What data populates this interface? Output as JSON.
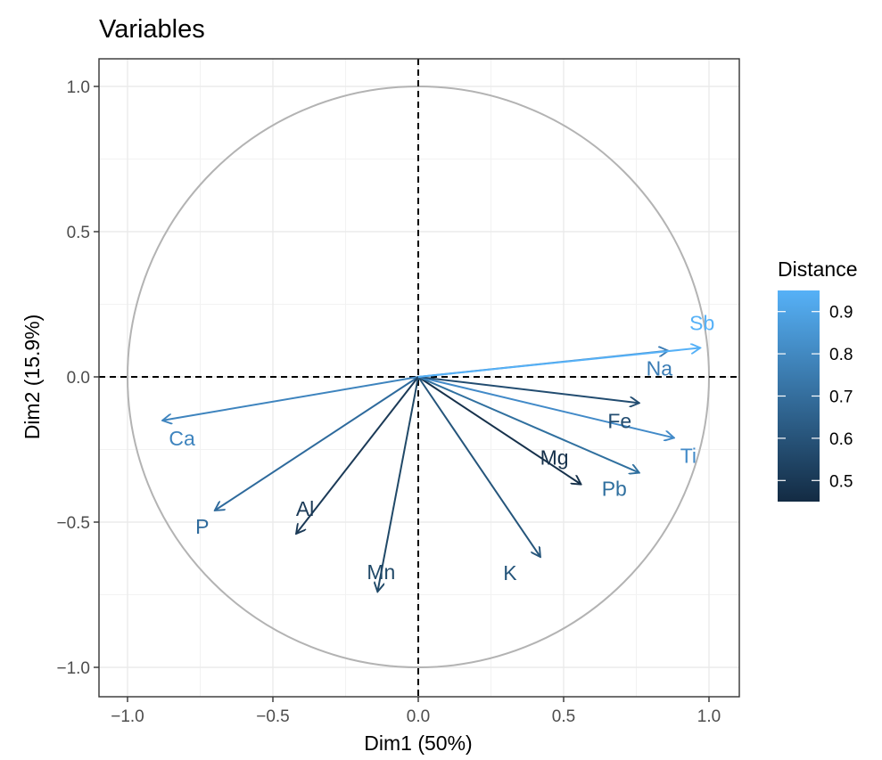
{
  "chart_data": {
    "type": "scatter",
    "title": "Variables",
    "xlabel": "Dim1 (50%)",
    "ylabel": "Dim2 (15.9%)",
    "xlim": [
      -1.1,
      1.1
    ],
    "ylim": [
      -1.1,
      1.1
    ],
    "x_ticks": [
      -1.0,
      -0.5,
      0.0,
      0.5,
      1.0
    ],
    "x_tick_labels": [
      "−1.0",
      "−0.5",
      "0.0",
      "0.5",
      "1.0"
    ],
    "y_ticks": [
      -1.0,
      -0.5,
      0.0,
      0.5,
      1.0
    ],
    "y_tick_labels": [
      "−1.0",
      "−0.5",
      "0.0",
      "0.5",
      "1.0"
    ],
    "grid": true,
    "unit_circle": true,
    "reference_lines": [
      {
        "axis": "x",
        "value": 0,
        "style": "dashed"
      },
      {
        "axis": "y",
        "value": 0,
        "style": "dashed"
      }
    ],
    "variables": [
      {
        "name": "Ca",
        "x": -0.88,
        "y": -0.15,
        "distance": 0.79,
        "color": "#3e84be"
      },
      {
        "name": "P",
        "x": -0.7,
        "y": -0.46,
        "distance": 0.68,
        "color": "#2e6a9c"
      },
      {
        "name": "Al",
        "x": -0.42,
        "y": -0.54,
        "distance": 0.5,
        "color": "#1b3a57"
      },
      {
        "name": "Mn",
        "x": -0.14,
        "y": -0.74,
        "distance": 0.57,
        "color": "#204968"
      },
      {
        "name": "K",
        "x": 0.42,
        "y": -0.62,
        "distance": 0.62,
        "color": "#25557b"
      },
      {
        "name": "Mg",
        "x": 0.56,
        "y": -0.37,
        "distance": 0.46,
        "color": "#16314b"
      },
      {
        "name": "Pb",
        "x": 0.76,
        "y": -0.33,
        "distance": 0.7,
        "color": "#30709f"
      },
      {
        "name": "Ti",
        "x": 0.88,
        "y": -0.21,
        "distance": 0.83,
        "color": "#428ac8"
      },
      {
        "name": "Fe",
        "x": 0.76,
        "y": -0.09,
        "distance": 0.59,
        "color": "#224c70"
      },
      {
        "name": "Na",
        "x": 0.86,
        "y": 0.09,
        "distance": 0.75,
        "color": "#3a7cb5"
      },
      {
        "name": "Sb",
        "x": 0.97,
        "y": 0.1,
        "distance": 0.95,
        "color": "#56b1f7"
      }
    ],
    "legend": {
      "title": "Distance",
      "position": "right",
      "range": [
        0.45,
        0.95
      ],
      "breaks": [
        0.5,
        0.6,
        0.7,
        0.8,
        0.9
      ],
      "break_labels": [
        "0.5",
        "0.6",
        "0.7",
        "0.8",
        "0.9"
      ],
      "low_color": "#132b43",
      "high_color": "#56b1f7"
    }
  }
}
